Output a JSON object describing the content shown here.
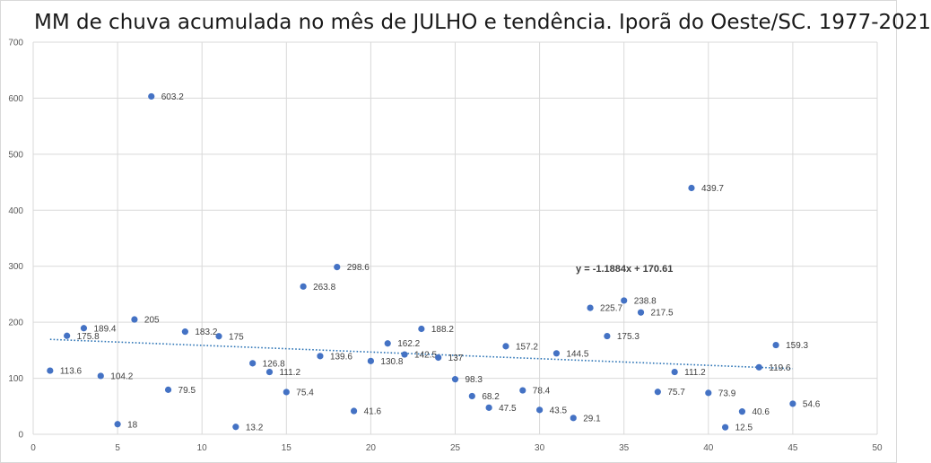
{
  "chart_data": {
    "type": "scatter",
    "title": "MM de chuva acumulada no mês de JULHO e tendência. Iporã do Oeste/SC. 1977-2021",
    "xlabel": "",
    "ylabel": "",
    "xlim": [
      0,
      50
    ],
    "ylim": [
      0,
      700
    ],
    "x_ticks": [
      0,
      5,
      10,
      15,
      20,
      25,
      30,
      35,
      40,
      45,
      50
    ],
    "y_ticks": [
      0,
      100,
      200,
      300,
      400,
      500,
      600,
      700
    ],
    "grid": true,
    "marker_color": "#4472c4",
    "label_color": "#404040",
    "series": [
      {
        "name": "MM de chuva",
        "points": [
          {
            "x": 1,
            "y": 113.6,
            "label": "113.6"
          },
          {
            "x": 2,
            "y": 175.8,
            "label": "175.8"
          },
          {
            "x": 3,
            "y": 189.4,
            "label": "189.4"
          },
          {
            "x": 4,
            "y": 104.2,
            "label": "104.2"
          },
          {
            "x": 5,
            "y": 18,
            "label": "18"
          },
          {
            "x": 6,
            "y": 205,
            "label": "205"
          },
          {
            "x": 7,
            "y": 603.2,
            "label": "603.2"
          },
          {
            "x": 8,
            "y": 79.5,
            "label": "79.5"
          },
          {
            "x": 9,
            "y": 183.2,
            "label": "183.2"
          },
          {
            "x": 11,
            "y": 175,
            "label": "175"
          },
          {
            "x": 12,
            "y": 13.2,
            "label": "13.2"
          },
          {
            "x": 13,
            "y": 126.8,
            "label": "126.8"
          },
          {
            "x": 14,
            "y": 111.2,
            "label": "111.2"
          },
          {
            "x": 15,
            "y": 75.4,
            "label": "75.4"
          },
          {
            "x": 16,
            "y": 263.8,
            "label": "263.8"
          },
          {
            "x": 17,
            "y": 139.6,
            "label": "139.6"
          },
          {
            "x": 18,
            "y": 298.6,
            "label": "298.6"
          },
          {
            "x": 19,
            "y": 41.6,
            "label": "41.6"
          },
          {
            "x": 20,
            "y": 130.8,
            "label": "130.8"
          },
          {
            "x": 21,
            "y": 162.2,
            "label": "162.2"
          },
          {
            "x": 22,
            "y": 142.5,
            "label": "142.5"
          },
          {
            "x": 23,
            "y": 188.2,
            "label": "188.2"
          },
          {
            "x": 24,
            "y": 137,
            "label": "137"
          },
          {
            "x": 25,
            "y": 98.3,
            "label": "98.3"
          },
          {
            "x": 26,
            "y": 68.2,
            "label": "68.2"
          },
          {
            "x": 27,
            "y": 47.5,
            "label": "47.5"
          },
          {
            "x": 28,
            "y": 157.2,
            "label": "157.2"
          },
          {
            "x": 29,
            "y": 78.4,
            "label": "78.4"
          },
          {
            "x": 30,
            "y": 43.5,
            "label": "43.5"
          },
          {
            "x": 31,
            "y": 144.5,
            "label": "144.5"
          },
          {
            "x": 32,
            "y": 29.1,
            "label": "29.1"
          },
          {
            "x": 33,
            "y": 225.7,
            "label": "225.7"
          },
          {
            "x": 34,
            "y": 175.3,
            "label": "175.3"
          },
          {
            "x": 35,
            "y": 238.8,
            "label": "238.8"
          },
          {
            "x": 36,
            "y": 217.5,
            "label": "217.5"
          },
          {
            "x": 37,
            "y": 75.7,
            "label": "75.7"
          },
          {
            "x": 38,
            "y": 111.2,
            "label": "111.2"
          },
          {
            "x": 39,
            "y": 439.7,
            "label": "439.7"
          },
          {
            "x": 40,
            "y": 73.9,
            "label": "73.9"
          },
          {
            "x": 41,
            "y": 12.5,
            "label": "12.5"
          },
          {
            "x": 42,
            "y": 40.6,
            "label": "40.6"
          },
          {
            "x": 43,
            "y": 119.6,
            "label": "119.6"
          },
          {
            "x": 44,
            "y": 159.3,
            "label": "159.3"
          },
          {
            "x": 45,
            "y": 54.6,
            "label": "54.6"
          }
        ]
      }
    ],
    "trendline": {
      "type": "linear",
      "slope": -1.1884,
      "intercept": 170.61,
      "x_range": [
        1,
        45
      ],
      "style": "dotted",
      "color": "#2e75b6",
      "equation_label": "y = -1.1884x + 170.61",
      "equation_anchor": {
        "x": 33,
        "y": 296
      }
    }
  }
}
